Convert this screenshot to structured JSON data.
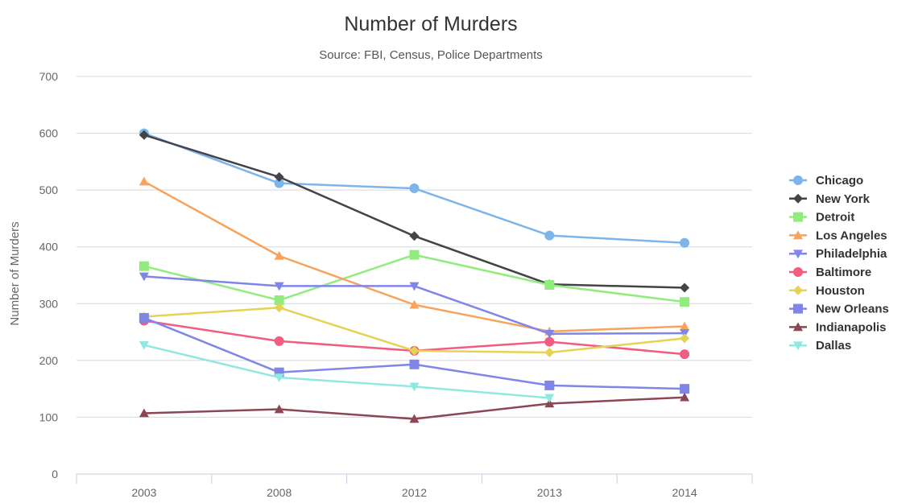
{
  "chart_data": {
    "type": "line",
    "title": "Number of Murders",
    "subtitle": "Source: FBI, Census, Police Departments",
    "xlabel": "",
    "ylabel": "Number of Murders",
    "categories": [
      "2003",
      "2008",
      "2012",
      "2013",
      "2014"
    ],
    "ylim": [
      0,
      700
    ],
    "yticks": [
      0,
      100,
      200,
      300,
      400,
      500,
      600,
      700
    ],
    "grid": true,
    "legend_position": "right",
    "series": [
      {
        "name": "Chicago",
        "color": "#7cb5ec",
        "marker": "circle",
        "values": [
          600,
          512,
          503,
          420,
          407
        ]
      },
      {
        "name": "New York",
        "color": "#434348",
        "marker": "diamond",
        "values": [
          597,
          523,
          419,
          334,
          328
        ]
      },
      {
        "name": "Detroit",
        "color": "#90ed7d",
        "marker": "square",
        "values": [
          366,
          306,
          386,
          333,
          303
        ]
      },
      {
        "name": "Los Angeles",
        "color": "#f7a35c",
        "marker": "triangle",
        "values": [
          515,
          384,
          298,
          251,
          260
        ]
      },
      {
        "name": "Philadelphia",
        "color": "#8085e9",
        "marker": "triangle-down",
        "values": [
          348,
          331,
          331,
          247,
          248
        ]
      },
      {
        "name": "Baltimore",
        "color": "#f15c80",
        "marker": "circle",
        "values": [
          270,
          234,
          217,
          233,
          211
        ]
      },
      {
        "name": "Houston",
        "color": "#e4d354",
        "marker": "diamond",
        "values": [
          277,
          293,
          217,
          214,
          239
        ]
      },
      {
        "name": "New Orleans",
        "color": "#8085e8",
        "marker": "square",
        "values": [
          275,
          179,
          193,
          156,
          150
        ]
      },
      {
        "name": "Indianapolis",
        "color": "#8d4653",
        "marker": "triangle",
        "values": [
          107,
          114,
          97,
          124,
          135
        ]
      },
      {
        "name": "Dallas",
        "color": "#91e8e1",
        "marker": "triangle-down",
        "values": [
          227,
          170,
          154,
          134,
          null
        ]
      }
    ]
  }
}
